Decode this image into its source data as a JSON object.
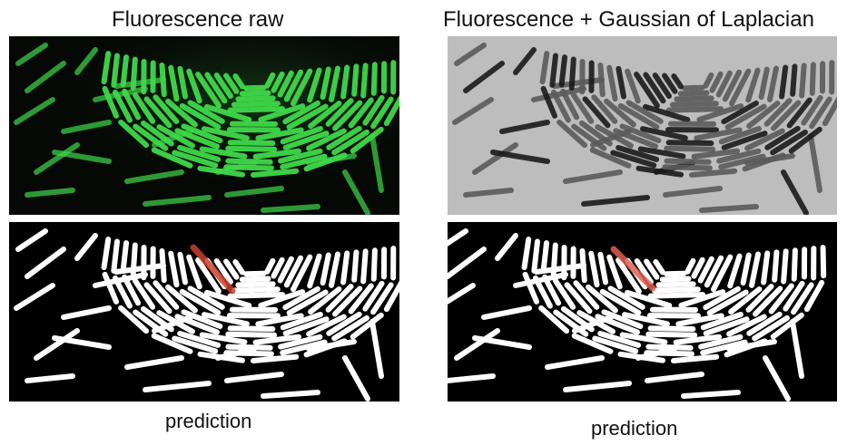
{
  "titles": {
    "left": "Fluorescence raw",
    "right": "Fluorescence + Gaussian of Laplacian"
  },
  "captions": {
    "left": "prediction",
    "right": "prediction"
  },
  "colors": {
    "fluorescence_green": "#3fd84a",
    "mask_white": "#ffffff",
    "highlight_red": "#c8402a"
  }
}
